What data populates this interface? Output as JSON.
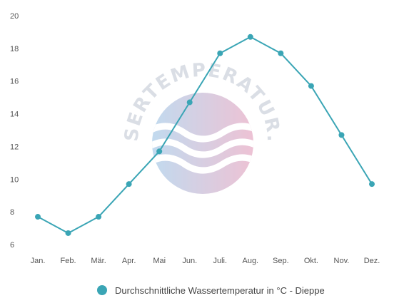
{
  "chart_data": {
    "type": "line",
    "categories": [
      "Jan.",
      "Feb.",
      "Mär.",
      "Apr.",
      "Mai",
      "Jun.",
      "Juli.",
      "Aug.",
      "Sep.",
      "Okt.",
      "Nov.",
      "Dez."
    ],
    "series": [
      {
        "name": "Durchschnittliche Wassertemperatur in °C - Dieppe",
        "values": [
          7.7,
          6.7,
          7.7,
          9.7,
          11.7,
          14.7,
          17.7,
          18.7,
          17.7,
          15.7,
          12.7,
          9.7
        ],
        "color": "#3aa5b5"
      }
    ],
    "ylim": [
      6,
      20
    ],
    "yticks": [
      "6",
      "8",
      "10",
      "12",
      "14",
      "16",
      "18",
      "20"
    ],
    "grid": false,
    "legend_position": "bottom-center"
  },
  "watermark": {
    "text": "WASSERTEMPERATUR.ORG",
    "colors": [
      "#a8cbe8",
      "#e6a9c3"
    ]
  }
}
